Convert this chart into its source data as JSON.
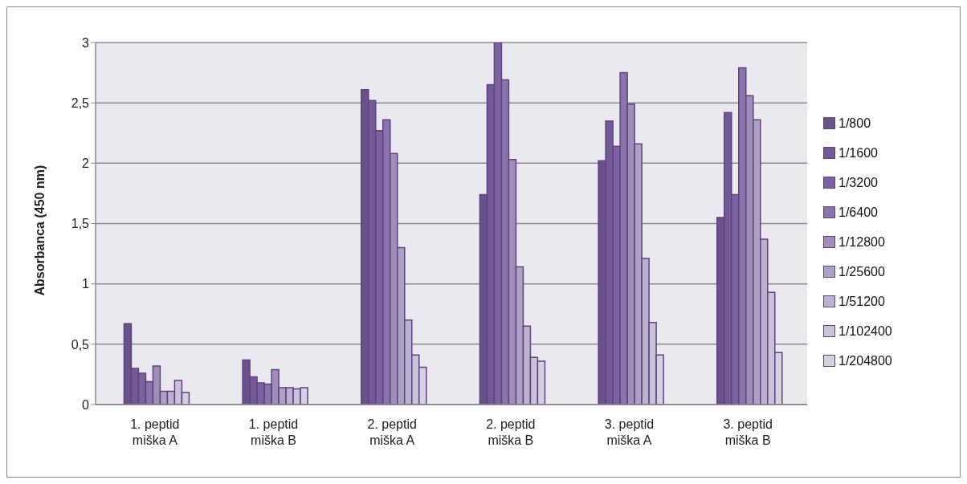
{
  "chart_data": {
    "type": "bar",
    "ylabel": "Absorbanca (450 nm)",
    "categories": [
      "1. peptid miška A",
      "1. peptid miška B",
      "2. peptid miška A",
      "2. peptid miška B",
      "3. peptid miška A",
      "3. peptid miška B"
    ],
    "series": [
      {
        "name": "1/800",
        "color": "#6b5189",
        "values": [
          0.67,
          0.37,
          2.61,
          1.74,
          2.02,
          1.55
        ]
      },
      {
        "name": "1/1600",
        "color": "#735a96",
        "values": [
          0.3,
          0.23,
          2.52,
          2.65,
          2.35,
          2.42
        ]
      },
      {
        "name": "1/3200",
        "color": "#7c62a0",
        "values": [
          0.26,
          0.18,
          2.27,
          3.0,
          2.14,
          1.74
        ]
      },
      {
        "name": "1/6400",
        "color": "#8a74ab",
        "values": [
          0.19,
          0.17,
          2.36,
          2.69,
          2.75,
          2.79
        ]
      },
      {
        "name": "1/12800",
        "color": "#9f8fb8",
        "values": [
          0.32,
          0.29,
          2.08,
          2.03,
          2.49,
          2.56
        ]
      },
      {
        "name": "1/25600",
        "color": "#ada1c4",
        "values": [
          0.11,
          0.14,
          1.3,
          1.14,
          2.16,
          2.36
        ]
      },
      {
        "name": "1/51200",
        "color": "#bcb2d0",
        "values": [
          0.11,
          0.14,
          0.7,
          0.65,
          1.21,
          1.37
        ]
      },
      {
        "name": "1/102400",
        "color": "#c9c2da",
        "values": [
          0.2,
          0.13,
          0.41,
          0.39,
          0.68,
          0.93
        ]
      },
      {
        "name": "1/204800",
        "color": "#d6d1e2",
        "values": [
          0.1,
          0.14,
          0.31,
          0.36,
          0.41,
          0.43
        ]
      }
    ],
    "ylim": [
      0,
      3
    ],
    "yticks": [
      0,
      {
        "value": 0.5,
        "label": "0,5"
      },
      1,
      {
        "value": 1.5,
        "label": "1,5"
      },
      2,
      {
        "value": 2.5,
        "label": "2,5"
      },
      3
    ],
    "grid": "y",
    "legend": "right"
  }
}
